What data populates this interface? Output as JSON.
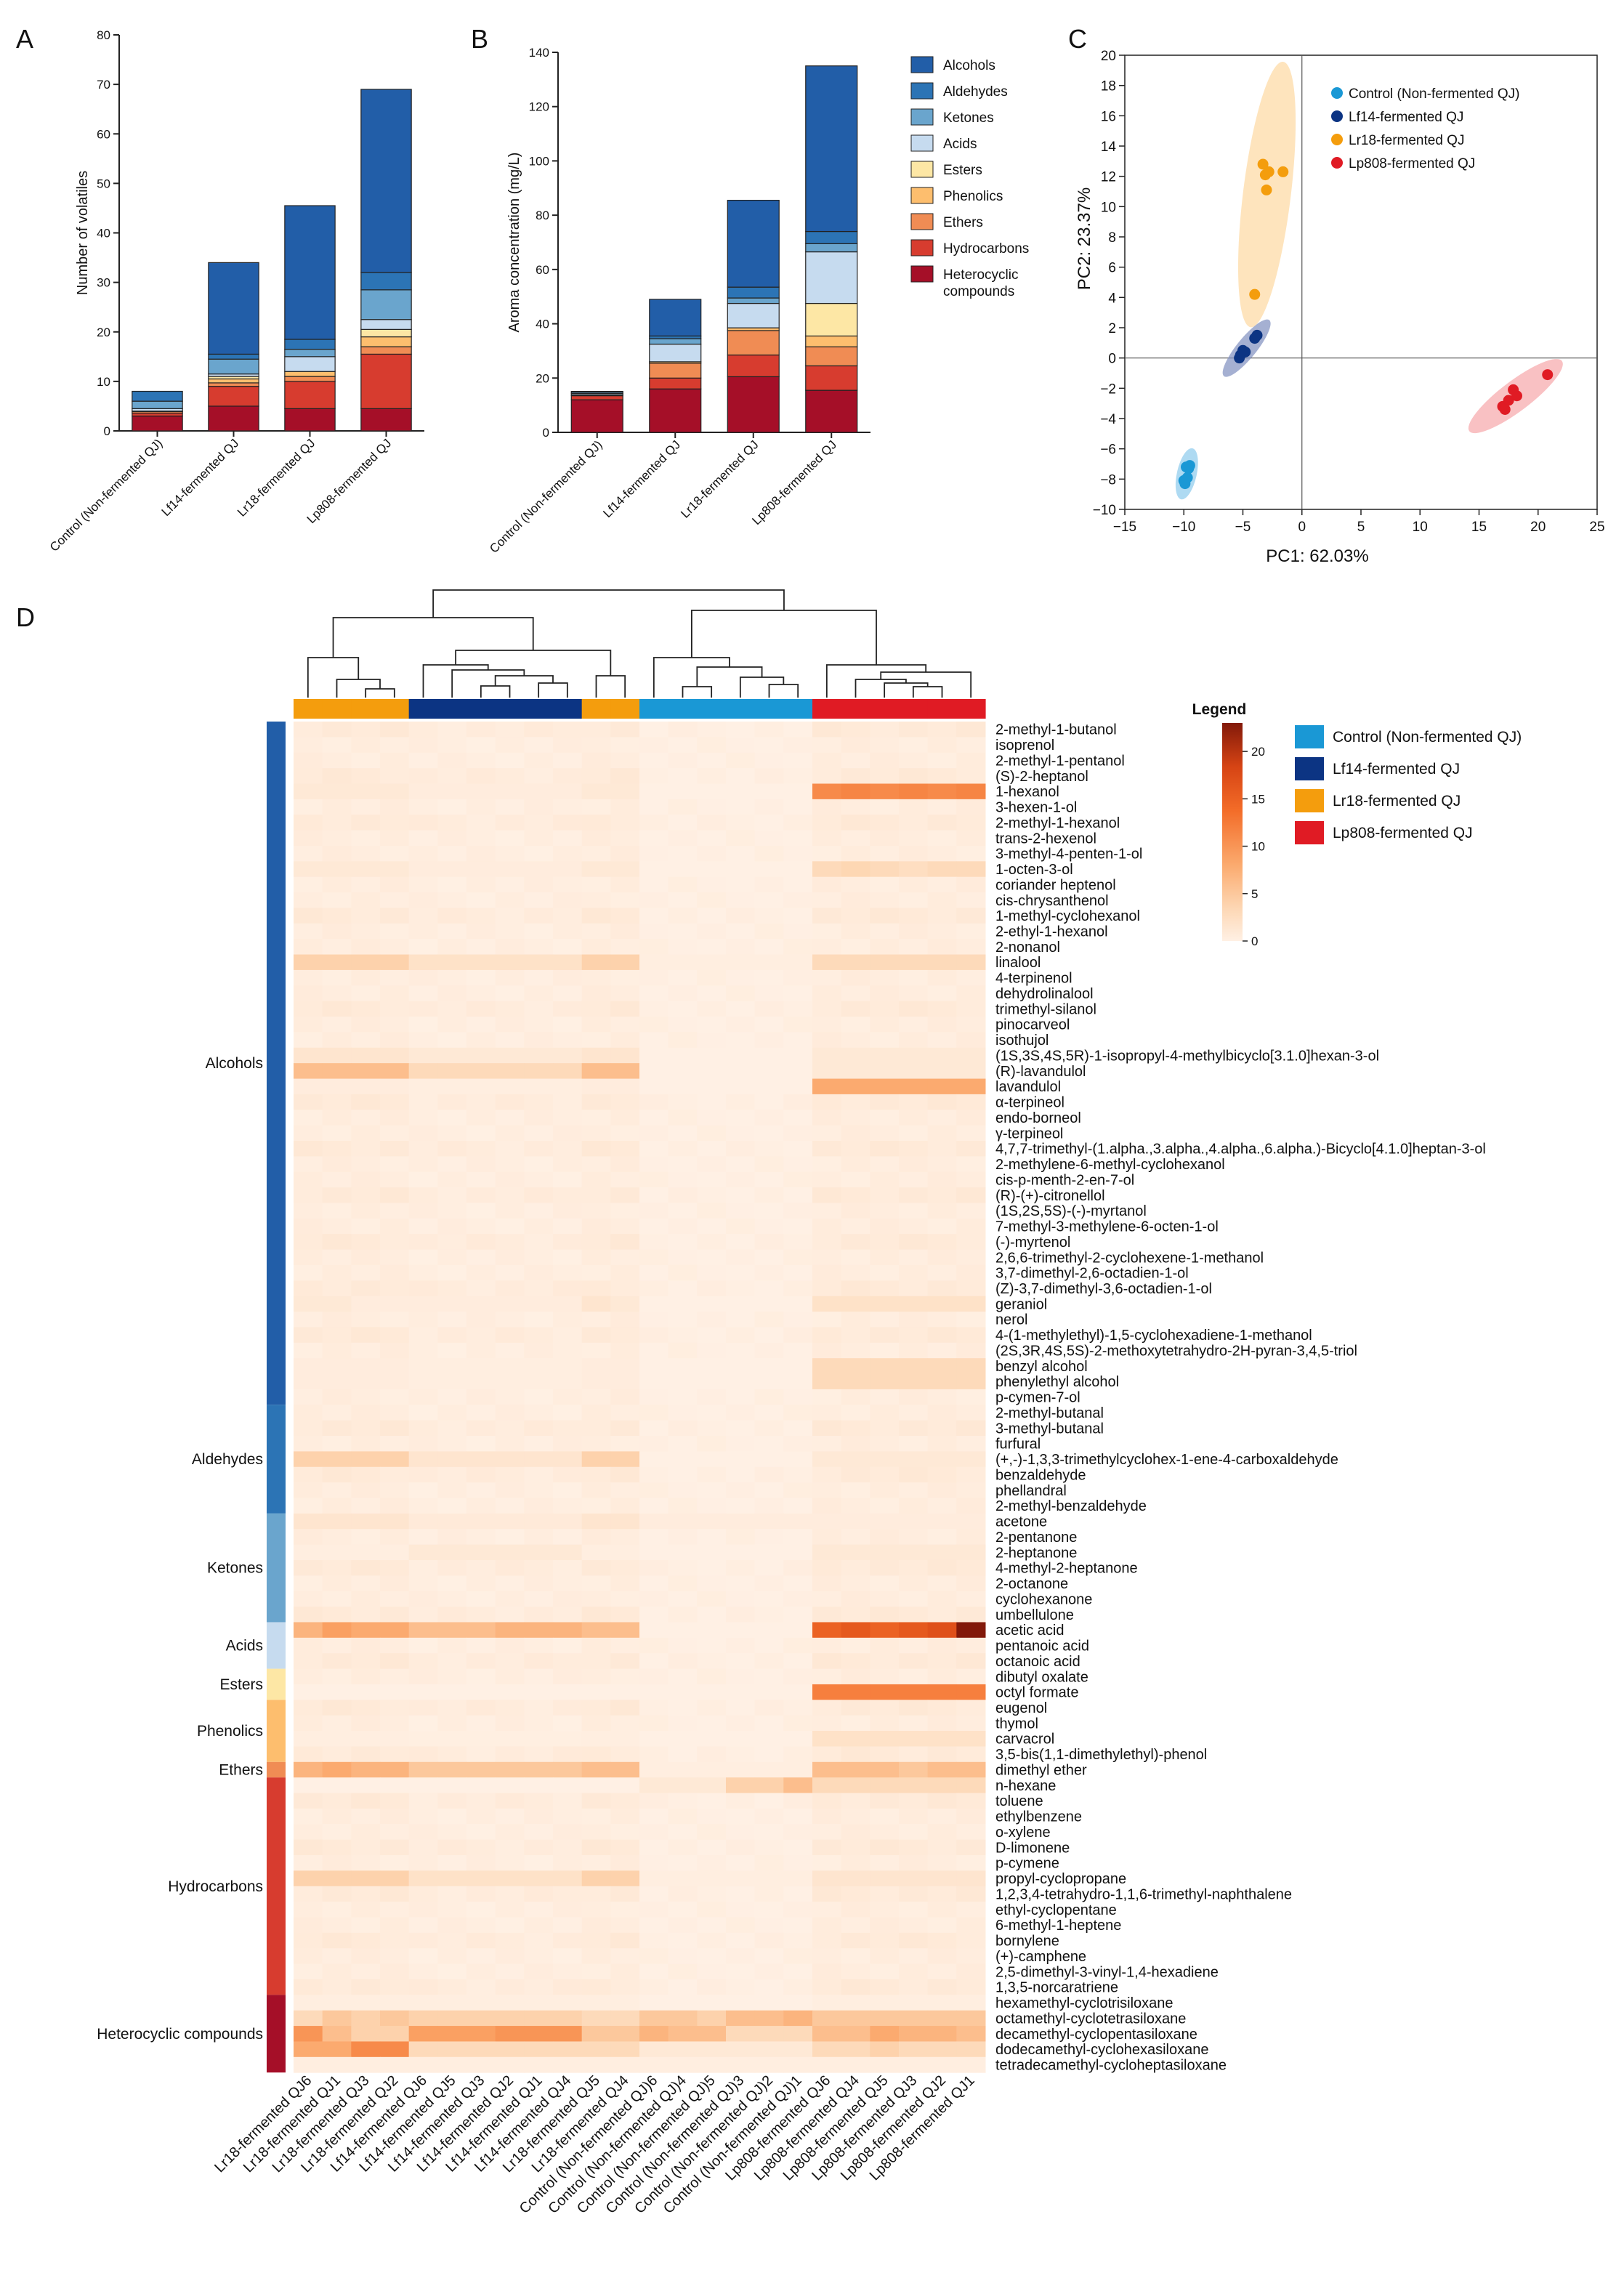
{
  "panels": {
    "A": "A",
    "B": "B",
    "C": "C",
    "D": "D"
  },
  "colors": {
    "classes": {
      "Alcohols": "#225ea8",
      "Aldehydes": "#2c74b5",
      "Ketones": "#6aa5cd",
      "Acids": "#c6dbef",
      "Esters": "#fde7a5",
      "Phenolics": "#fdbe6e",
      "Ethers": "#f08c54",
      "Hydrocarbons": "#d73c2f",
      "Heterocyclic compounds": "#a50f28"
    },
    "groups": {
      "Control": "#1a98d5",
      "Lf14": "#0c3483",
      "Lr18": "#f49d0d",
      "Lp808": "#e01b24"
    }
  },
  "chart_data": [
    {
      "type": "bar",
      "panel": "A",
      "stacked": true,
      "ylabel": "Number of volatiles",
      "ylim": [
        0,
        80
      ],
      "yticks": [
        0,
        10,
        20,
        30,
        40,
        50,
        60,
        70,
        80
      ],
      "categories": [
        "Control (Non-fermented QJ)",
        "Lf14-fermented QJ",
        "Lr18-fermented QJ",
        "Lp808-fermented QJ"
      ],
      "series": [
        {
          "name": "Heterocyclic compounds",
          "values": [
            3,
            5,
            4.5,
            4.5
          ]
        },
        {
          "name": "Hydrocarbons",
          "values": [
            0.6,
            4,
            5.5,
            11
          ]
        },
        {
          "name": "Ethers",
          "values": [
            0.3,
            0.7,
            1,
            1.5
          ]
        },
        {
          "name": "Phenolics",
          "values": [
            0.1,
            0.8,
            1,
            2
          ]
        },
        {
          "name": "Esters",
          "values": [
            0,
            0.5,
            0,
            1.5
          ]
        },
        {
          "name": "Acids",
          "values": [
            0.5,
            0.5,
            3,
            2
          ]
        },
        {
          "name": "Ketones",
          "values": [
            1.5,
            3,
            1.5,
            6
          ]
        },
        {
          "name": "Aldehydes",
          "values": [
            2,
            1,
            2,
            3.5
          ]
        },
        {
          "name": "Alcohols",
          "values": [
            0,
            18.5,
            27,
            37
          ]
        }
      ]
    },
    {
      "type": "bar",
      "panel": "B",
      "stacked": true,
      "ylabel": "Aroma concentration (mg/L)",
      "ylim": [
        0,
        140
      ],
      "yticks": [
        0,
        20,
        40,
        60,
        80,
        100,
        120,
        140
      ],
      "categories": [
        "Control (Non-fermented QJ)",
        "Lf14-fermented QJ",
        "Lr18-fermented QJ",
        "Lp808-fermented QJ"
      ],
      "series": [
        {
          "name": "Heterocyclic compounds",
          "values": [
            12,
            16,
            20.5,
            15.5
          ]
        },
        {
          "name": "Hydrocarbons",
          "values": [
            1.5,
            4,
            8,
            9
          ]
        },
        {
          "name": "Ethers",
          "values": [
            0.3,
            5.5,
            9,
            7
          ]
        },
        {
          "name": "Phenolics",
          "values": [
            0,
            0.5,
            1,
            4
          ]
        },
        {
          "name": "Esters",
          "values": [
            0,
            0,
            0,
            12
          ]
        },
        {
          "name": "Acids",
          "values": [
            0.5,
            6.5,
            9,
            19
          ]
        },
        {
          "name": "Ketones",
          "values": [
            0.5,
            2,
            2,
            3
          ]
        },
        {
          "name": "Aldehydes",
          "values": [
            0.3,
            1,
            4,
            4.5
          ]
        },
        {
          "name": "Alcohols",
          "values": [
            0,
            13.5,
            32,
            61
          ]
        }
      ],
      "legend": [
        "Alcohols",
        "Aldehydes",
        "Ketones",
        "Acids",
        "Esters",
        "Phenolics",
        "Ethers",
        "Hydrocarbons",
        "Heterocyclic compounds"
      ]
    },
    {
      "type": "scatter",
      "panel": "C",
      "xlabel": "PC1: 62.03%",
      "ylabel": "PC2: 23.37%",
      "xlim": [
        -15,
        25
      ],
      "ylim": [
        -10,
        20
      ],
      "xticks": [
        -15,
        -10,
        -5,
        0,
        5,
        10,
        15,
        20,
        25
      ],
      "yticks": [
        -10,
        -8,
        -6,
        -4,
        -2,
        0,
        2,
        4,
        6,
        8,
        10,
        12,
        14,
        16,
        18,
        20
      ],
      "series": [
        {
          "name": "Control (Non-fermented QJ)",
          "color": "#1a98d5",
          "x": [
            -9.8,
            -9.6,
            -10.0,
            -9.9,
            -9.7,
            -9.5
          ],
          "y": [
            -7.2,
            -7.3,
            -8.1,
            -8.3,
            -7.9,
            -7.1
          ]
        },
        {
          "name": "Lf14-fermented QJ",
          "color": "#0c3483",
          "x": [
            -5.2,
            -5.0,
            -4.8,
            -4.0,
            -3.8,
            -5.3
          ],
          "y": [
            0.2,
            0.5,
            0.4,
            1.3,
            1.5,
            0.0
          ]
        },
        {
          "name": "Lr18-fermented QJ",
          "color": "#f49d0d",
          "x": [
            -3.3,
            -3.1,
            -3.0,
            -2.8,
            -1.6,
            -4.0
          ],
          "y": [
            12.8,
            12.1,
            11.1,
            12.3,
            12.3,
            4.2
          ]
        },
        {
          "name": "Lp808-fermented QJ",
          "color": "#e01b24",
          "x": [
            17.0,
            17.5,
            17.9,
            18.2,
            20.8,
            17.2
          ],
          "y": [
            -3.2,
            -2.8,
            -2.1,
            -2.5,
            -1.1,
            -3.4
          ]
        }
      ]
    },
    {
      "type": "heatmap",
      "panel": "D",
      "legend_title": "Legend",
      "colorbar_ticks": [
        20,
        15,
        10,
        5,
        0
      ],
      "colorbar_range": [
        0,
        23
      ],
      "group_legend": [
        "Control (Non-fermented QJ)",
        "Lf14-fermented QJ",
        "Lr18-fermented QJ",
        "Lp808-fermented QJ"
      ],
      "columns": [
        "Lr18-fermented QJ6",
        "Lr18-fermented QJ1",
        "Lr18-fermented QJ3",
        "Lr18-fermented QJ2",
        "Lf14-fermented QJ6",
        "Lf14-fermented QJ5",
        "Lf14-fermented QJ3",
        "Lf14-fermented QJ2",
        "Lf14-fermented QJ1",
        "Lf14-fermented QJ4",
        "Lr18-fermented QJ5",
        "Lr18-fermented QJ4",
        "Control (Non-fermented QJ)6",
        "Control (Non-fermented QJ)4",
        "Control (Non-fermented QJ)5",
        "Control (Non-fermented QJ)3",
        "Control (Non-fermented QJ)2",
        "Control (Non-fermented QJ)1",
        "Lp808-fermented QJ6",
        "Lp808-fermented QJ4",
        "Lp808-fermented QJ5",
        "Lp808-fermented QJ3",
        "Lp808-fermented QJ2",
        "Lp808-fermented QJ1"
      ],
      "column_groups": [
        "Lr18",
        "Lr18",
        "Lr18",
        "Lr18",
        "Lf14",
        "Lf14",
        "Lf14",
        "Lf14",
        "Lf14",
        "Lf14",
        "Lr18",
        "Lr18",
        "Control",
        "Control",
        "Control",
        "Control",
        "Control",
        "Control",
        "Lp808",
        "Lp808",
        "Lp808",
        "Lp808",
        "Lp808",
        "Lp808"
      ],
      "row_classes": [
        {
          "name": "Alcohols",
          "count": 44
        },
        {
          "name": "Aldehydes",
          "count": 7
        },
        {
          "name": "Ketones",
          "count": 7
        },
        {
          "name": "Acids",
          "count": 3
        },
        {
          "name": "Esters",
          "count": 2
        },
        {
          "name": "Phenolics",
          "count": 4
        },
        {
          "name": "Ethers",
          "count": 1
        },
        {
          "name": "Hydrocarbons",
          "count": 14
        },
        {
          "name": "Heterocyclic compounds",
          "count": 5
        }
      ],
      "rows": [
        "2-methyl-1-butanol",
        "isoprenol",
        "2-methyl-1-pentanol",
        "(S)-2-heptanol",
        "1-hexanol",
        "3-hexen-1-ol",
        "2-methyl-1-hexanol",
        "trans-2-hexenol",
        "3-methyl-4-penten-1-ol",
        "1-octen-3-ol",
        "coriander heptenol",
        "cis-chrysanthenol",
        "1-methyl-cyclohexanol",
        "2-ethyl-1-hexanol",
        "2-nonanol",
        "linalool",
        "4-terpinenol",
        "dehydrolinalool",
        "trimethyl-silanol",
        "pinocarveol",
        "isothujol",
        "(1S,3S,4S,5R)-1-isopropyl-4-methylbicyclo[3.1.0]hexan-3-ol",
        "(R)-lavandulol",
        "lavandulol",
        "α-terpineol",
        "endo-borneol",
        "γ-terpineol",
        "4,7,7-trimethyl-(1.alpha.,3.alpha.,4.alpha.,6.alpha.)-Bicyclo[4.1.0]heptan-3-ol",
        "2-methylene-6-methyl-cyclohexanol",
        "cis-p-menth-2-en-7-ol",
        "(R)-(+)-citronellol",
        "(1S,2S,5S)-(-)-myrtanol",
        "7-methyl-3-methylene-6-octen-1-ol",
        "(-)-myrtenol",
        "2,6,6-trimethyl-2-cyclohexene-1-methanol",
        "3,7-dimethyl-2,6-octadien-1-ol",
        "(Z)-3,7-dimethyl-3,6-octadien-1-ol",
        "geraniol",
        "nerol",
        "4-(1-methylethyl)-1,5-cyclohexadiene-1-methanol",
        "(2S,3R,4S,5S)-2-methoxytetrahydro-2H-pyran-3,4,5-triol",
        "benzyl alcohol",
        "phenylethyl alcohol",
        "p-cymen-7-ol",
        "2-methyl-butanal",
        "3-methyl-butanal",
        "furfural",
        "(+,-)-1,3,3-trimethylcyclohex-1-ene-4-carboxaldehyde",
        "benzaldehyde",
        "phellandral",
        "2-methyl-benzaldehyde",
        "acetone",
        "2-pentanone",
        "2-heptanone",
        "4-methyl-2-heptanone",
        "2-octanone",
        "cyclohexanone",
        "umbellulone",
        "acetic acid",
        "pentanoic acid",
        "octanoic acid",
        "dibutyl oxalate",
        "octyl formate",
        "eugenol",
        "thymol",
        "carvacrol",
        "3,5-bis(1,1-dimethylethyl)-phenol",
        "dimethyl ether",
        "n-hexane",
        "toluene",
        "ethylbenzene",
        "o-xylene",
        "D-limonene",
        "p-cymene",
        "propyl-cyclopropane",
        "1,2,3,4-tetrahydro-1,1,6-trimethyl-naphthalene",
        "ethyl-cyclopentane",
        "6-methyl-1-heptene",
        "bornylene",
        "(+)-camphene",
        "2,5-dimethyl-3-vinyl-1,4-hexadiene",
        "1,3,5-norcaratriene",
        "hexamethyl-cyclotrisiloxane",
        "octamethyl-cyclotetrasiloxane",
        "decamethyl-cyclopentasiloxane",
        "dodecamethyl-cyclohexasiloxane",
        "tetradecamethyl-cycloheptasiloxane"
      ],
      "profiles": {
        "4": [
          1,
          1,
          1,
          1,
          0.5,
          0.5,
          0.5,
          0.5,
          0.5,
          0.5,
          1,
          1,
          0,
          0,
          0,
          0,
          0,
          0,
          11,
          11.5,
          11,
          11.5,
          11,
          11.5
        ],
        "9": [
          1,
          1,
          1,
          1,
          0.5,
          0.5,
          0.5,
          0.5,
          0.5,
          0.5,
          1,
          1,
          0,
          0,
          0,
          0,
          0,
          0,
          3,
          3.5,
          3,
          2.5,
          3,
          3
        ],
        "15": [
          4,
          4,
          4,
          4,
          2,
          2,
          2,
          2,
          2,
          2,
          4,
          4,
          0.3,
          0.3,
          0.3,
          0.3,
          0.3,
          0.3,
          3,
          3,
          3,
          3,
          3,
          3
        ],
        "21": [
          1.5,
          1.5,
          1.5,
          1.5,
          1,
          1,
          1,
          1,
          1,
          1,
          1.5,
          1.5,
          0,
          0,
          0,
          0,
          0,
          0,
          1,
          1,
          1,
          1,
          1,
          1
        ],
        "22": [
          6,
          6,
          6,
          6,
          3,
          3,
          3,
          3,
          3,
          3,
          6,
          6,
          0,
          0,
          0,
          0,
          0,
          0,
          1,
          1,
          1,
          1,
          1,
          1
        ],
        "23": [
          0.5,
          0.5,
          0.5,
          0.5,
          0.3,
          0.3,
          0.3,
          0.3,
          0.3,
          0.3,
          0.5,
          0.5,
          0,
          0,
          0,
          0,
          0,
          0,
          8,
          8,
          8,
          8,
          8,
          8
        ],
        "37": [
          1,
          1,
          0.5,
          0.5,
          0.5,
          0.5,
          0.5,
          0.5,
          0.5,
          0.5,
          1.5,
          1,
          0,
          0,
          0,
          0,
          0,
          0,
          2,
          2,
          2,
          2,
          2,
          2
        ],
        "41": [
          0.5,
          0.5,
          0.5,
          0.5,
          0.3,
          0.3,
          0.3,
          0.3,
          0.3,
          0.3,
          0.5,
          0.5,
          0,
          0,
          0,
          0,
          0,
          0,
          3,
          3,
          3,
          3,
          3,
          3
        ],
        "42": [
          0.5,
          0.5,
          0.5,
          0.5,
          0.3,
          0.3,
          0.3,
          0.3,
          0.3,
          0.3,
          0.5,
          0.5,
          0,
          0,
          0,
          0,
          0,
          0,
          3,
          3,
          3,
          3,
          3,
          3
        ],
        "47": [
          4,
          4,
          4,
          4,
          1.5,
          1.5,
          1.5,
          1.5,
          1.5,
          1.5,
          4,
          4,
          0,
          0,
          0,
          0,
          0,
          0,
          1,
          1,
          1,
          1,
          1,
          1
        ],
        "51": [
          1.5,
          1.5,
          1.5,
          1.5,
          0.8,
          0.8,
          0.8,
          0.8,
          0.8,
          0.8,
          1.5,
          1.5,
          0.5,
          0.5,
          0.5,
          0.5,
          0.5,
          0.5,
          0.5,
          0.5,
          0.5,
          0.5,
          0.5,
          0.5
        ],
        "53": [
          0.3,
          0.3,
          0.3,
          0.3,
          1,
          1,
          1,
          1,
          1,
          1,
          0.3,
          0.3,
          0,
          0,
          0,
          0,
          0,
          0,
          1,
          1,
          1,
          1,
          1,
          1
        ],
        "58": [
          7,
          9,
          8,
          8,
          6,
          6,
          6,
          7,
          7,
          7,
          6,
          6,
          0,
          0,
          0,
          0,
          0,
          0,
          15,
          16,
          15,
          16,
          17,
          23
        ],
        "62": [
          0,
          0,
          0,
          0,
          0,
          0,
          0,
          0,
          0,
          0,
          0,
          0,
          0,
          0,
          0,
          0,
          0,
          0,
          12,
          12,
          12,
          12,
          12,
          12
        ],
        "65": [
          0.3,
          0.3,
          0.3,
          0.3,
          0.2,
          0.2,
          0.2,
          0.2,
          0.2,
          0.2,
          0.3,
          0.3,
          0,
          0,
          0,
          0,
          0,
          0,
          2,
          2,
          2,
          2,
          2,
          2
        ],
        "67": [
          7,
          8,
          7,
          7,
          5,
          5,
          5,
          5,
          5,
          5,
          6,
          6,
          0.3,
          0.3,
          0.3,
          0.3,
          0.3,
          0.3,
          6,
          6,
          6,
          5,
          6,
          6
        ],
        "68": [
          0,
          0,
          0,
          0,
          0,
          0,
          0,
          0,
          0,
          0,
          0,
          0,
          1,
          1,
          1,
          4,
          4,
          6,
          3,
          3,
          3,
          3,
          3,
          3
        ],
        "74": [
          4,
          4,
          4,
          4,
          2,
          2,
          2,
          2,
          2,
          2,
          4,
          4,
          0.3,
          0.3,
          0.3,
          0.3,
          0.3,
          0.3,
          1.5,
          1.5,
          1.5,
          1.5,
          1.5,
          1.5
        ],
        "82": [
          0.3,
          0.3,
          0.3,
          0.3,
          0.3,
          0.3,
          0.3,
          0.3,
          0.3,
          0.3,
          0.3,
          0.3,
          0,
          0,
          0,
          0,
          0,
          0,
          0.3,
          0.3,
          0.3,
          0.3,
          0.3,
          0.3
        ],
        "83": [
          3,
          5,
          4,
          5,
          4,
          4,
          4,
          4,
          4,
          4,
          3,
          3,
          5,
          5,
          4,
          6,
          6,
          7,
          5,
          5,
          5,
          5,
          5,
          5
        ],
        "84": [
          10,
          6,
          4,
          4,
          9,
          9,
          9,
          10,
          10,
          10,
          5,
          5,
          7,
          6,
          6,
          3,
          3,
          3,
          6,
          6,
          8,
          7,
          7,
          6
        ],
        "85": [
          8,
          8,
          11,
          11,
          3,
          3,
          3,
          3,
          3,
          3,
          3,
          3,
          1,
          1,
          1,
          1,
          1,
          1,
          3,
          3,
          4,
          3,
          3,
          3
        ],
        "86": [
          0.3,
          0.3,
          0.3,
          0.3,
          0.3,
          0.3,
          0.3,
          0.3,
          0.3,
          0.3,
          0.3,
          0.3,
          0.3,
          0.3,
          0.3,
          0.3,
          0.3,
          0.3,
          0.3,
          0.3,
          0.3,
          0.3,
          0.3,
          0.3
        ]
      },
      "default_levels": {
        "Lr18": 0.8,
        "Lf14": 0.5,
        "Control": 0.1,
        "Lp808": 0.8
      }
    }
  ]
}
